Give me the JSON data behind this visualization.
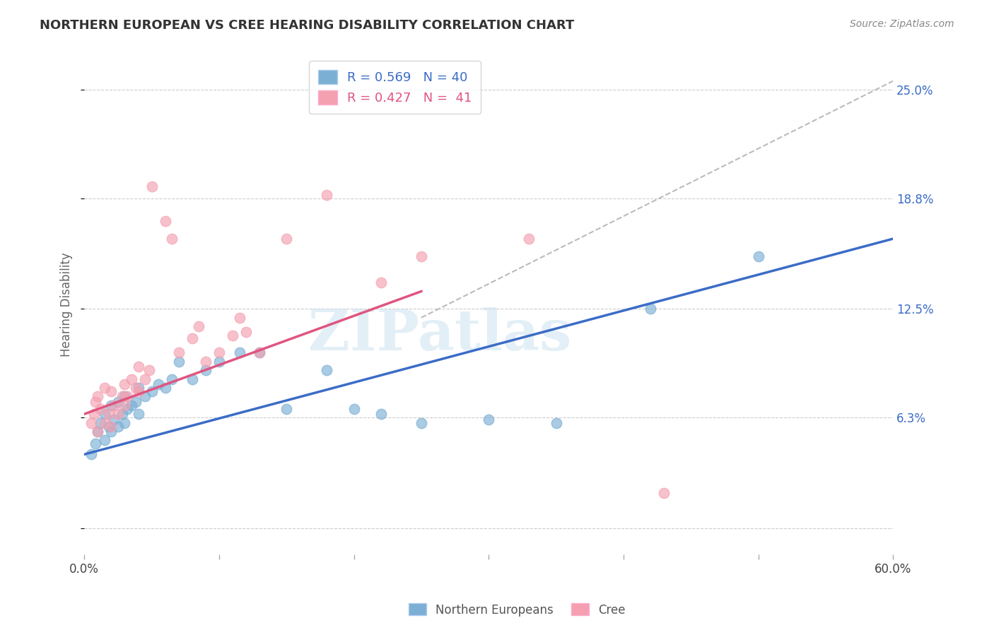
{
  "title": "NORTHERN EUROPEAN VS CREE HEARING DISABILITY CORRELATION CHART",
  "source": "Source: ZipAtlas.com",
  "ylabel": "Hearing Disability",
  "R1": 0.569,
  "N1": 40,
  "R2": 0.427,
  "N2": 41,
  "color_blue": "#7BAFD4",
  "color_pink": "#F4A0B0",
  "color_blue_line": "#3B6CC7",
  "color_pink_line": "#E05580",
  "color_gray_dashed": "#BBBBBB",
  "xmin": 0.0,
  "xmax": 0.6,
  "ymin": -0.015,
  "ymax": 0.27,
  "yticks": [
    0.0,
    0.063,
    0.125,
    0.188,
    0.25
  ],
  "ytick_labels": [
    "",
    "6.3%",
    "12.5%",
    "18.8%",
    "25.0%"
  ],
  "watermark": "ZIPatlas",
  "legend_label1": "Northern Europeans",
  "legend_label2": "Cree",
  "blue_x": [
    0.005,
    0.008,
    0.01,
    0.012,
    0.015,
    0.015,
    0.018,
    0.02,
    0.02,
    0.022,
    0.025,
    0.025,
    0.028,
    0.03,
    0.03,
    0.032,
    0.035,
    0.038,
    0.04,
    0.04,
    0.045,
    0.05,
    0.055,
    0.06,
    0.065,
    0.07,
    0.08,
    0.09,
    0.1,
    0.115,
    0.13,
    0.15,
    0.18,
    0.2,
    0.22,
    0.25,
    0.3,
    0.35,
    0.42,
    0.5
  ],
  "blue_y": [
    0.042,
    0.048,
    0.055,
    0.06,
    0.05,
    0.065,
    0.058,
    0.055,
    0.07,
    0.062,
    0.058,
    0.072,
    0.065,
    0.06,
    0.075,
    0.068,
    0.07,
    0.072,
    0.065,
    0.08,
    0.075,
    0.078,
    0.082,
    0.08,
    0.085,
    0.095,
    0.085,
    0.09,
    0.095,
    0.1,
    0.1,
    0.068,
    0.09,
    0.068,
    0.065,
    0.06,
    0.062,
    0.06,
    0.125,
    0.155
  ],
  "pink_x": [
    0.005,
    0.007,
    0.008,
    0.01,
    0.01,
    0.012,
    0.015,
    0.015,
    0.018,
    0.02,
    0.02,
    0.022,
    0.025,
    0.028,
    0.03,
    0.03,
    0.032,
    0.035,
    0.038,
    0.04,
    0.04,
    0.045,
    0.048,
    0.05,
    0.06,
    0.065,
    0.07,
    0.08,
    0.085,
    0.09,
    0.1,
    0.11,
    0.115,
    0.12,
    0.13,
    0.15,
    0.18,
    0.22,
    0.25,
    0.33,
    0.43
  ],
  "pink_y": [
    0.06,
    0.065,
    0.072,
    0.055,
    0.075,
    0.068,
    0.06,
    0.08,
    0.065,
    0.058,
    0.078,
    0.07,
    0.065,
    0.075,
    0.07,
    0.082,
    0.075,
    0.085,
    0.08,
    0.078,
    0.092,
    0.085,
    0.09,
    0.195,
    0.175,
    0.165,
    0.1,
    0.108,
    0.115,
    0.095,
    0.1,
    0.11,
    0.12,
    0.112,
    0.1,
    0.165,
    0.19,
    0.14,
    0.155,
    0.165,
    0.02
  ],
  "blue_line_x": [
    0.0,
    0.6
  ],
  "blue_line_y": [
    0.042,
    0.165
  ],
  "pink_line_x": [
    0.0,
    0.25
  ],
  "pink_line_y": [
    0.065,
    0.135
  ],
  "dashed_line_x": [
    0.25,
    0.6
  ],
  "dashed_line_y": [
    0.12,
    0.255
  ]
}
